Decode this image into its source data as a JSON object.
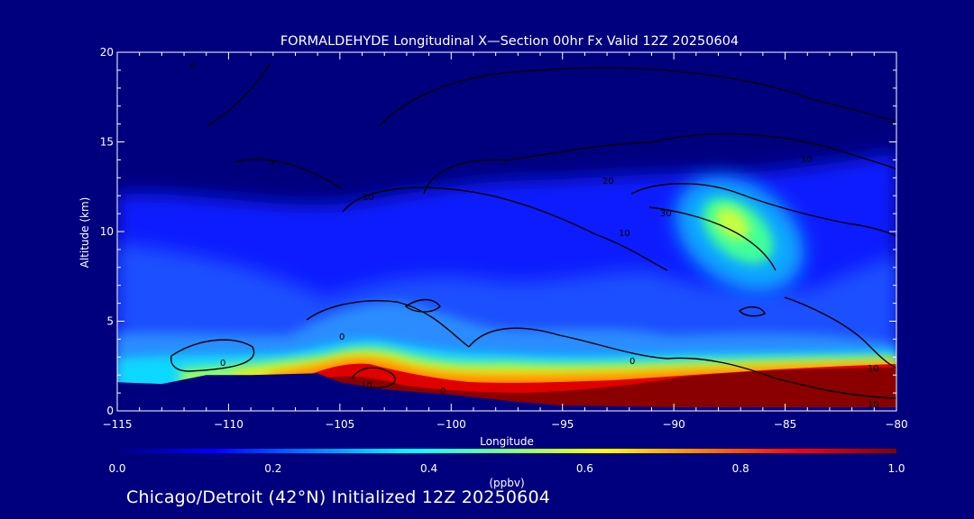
{
  "chart_data": {
    "type": "heatmap",
    "title": "FORMALDEHYDE Longitudinal X—Section 00hr  Fx Valid 12Z 20250604",
    "xlabel": "Longitude",
    "ylabel": "Altitude (km)",
    "xlim": [
      -115,
      -80
    ],
    "ylim": [
      0,
      20
    ],
    "x_ticks": [
      "−115",
      "−110",
      "−105",
      "−100",
      "−95",
      "−90",
      "−85",
      "−80"
    ],
    "x_tick_values": [
      -115,
      -110,
      -105,
      -100,
      -95,
      -90,
      -85,
      -80
    ],
    "y_ticks": [
      "0",
      "5",
      "10",
      "15",
      "20"
    ],
    "y_tick_values": [
      0,
      5,
      10,
      15,
      20
    ],
    "colorbar": {
      "label": "(ppbv)",
      "min": 0.0,
      "max": 1.0,
      "ticks": [
        "0.0",
        "0.2",
        "0.4",
        "0.6",
        "0.8",
        "1.0"
      ],
      "tick_values": [
        0.0,
        0.2,
        0.4,
        0.6,
        0.8,
        1.0
      ],
      "colors": [
        "#00007f",
        "#0000ff",
        "#0080ff",
        "#00ffff",
        "#80ff80",
        "#ffff00",
        "#ff8000",
        "#ff0000",
        "#800000"
      ]
    },
    "contour_labels": [
      "0",
      "10",
      "30",
      "20"
    ],
    "terrain_surface": [
      {
        "lon": -115,
        "alt": 1.6
      },
      {
        "lon": -113,
        "alt": 1.5
      },
      {
        "lon": -111,
        "alt": 2.0
      },
      {
        "lon": -109,
        "alt": 2.0
      },
      {
        "lon": -106,
        "alt": 2.1
      },
      {
        "lon": -105,
        "alt": 1.6
      },
      {
        "lon": -103,
        "alt": 1.2
      },
      {
        "lon": -100,
        "alt": 0.9
      },
      {
        "lon": -97,
        "alt": 0.5
      },
      {
        "lon": -95,
        "alt": 0.3
      },
      {
        "lon": -90,
        "alt": 0.2
      },
      {
        "lon": -85,
        "alt": 0.2
      },
      {
        "lon": -80,
        "alt": 0.2
      }
    ],
    "surface_layer_max_ppbv": 1.0,
    "upper_maximum": {
      "lon": -87.5,
      "alt": 10.5,
      "value_ppbv": 0.55
    }
  },
  "footer": "Chicago/Detroit (42°N) Initialized 12Z 20250604"
}
